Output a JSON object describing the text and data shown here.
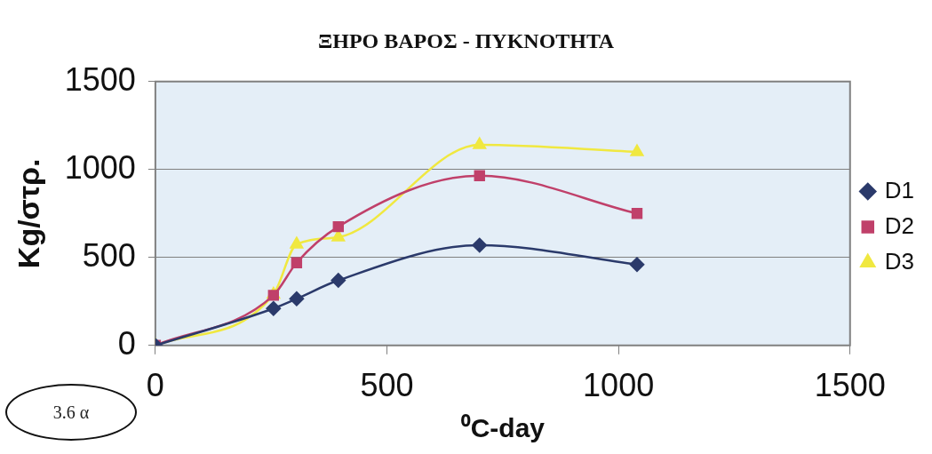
{
  "chart_data": {
    "type": "line",
    "title": "ΞΗΡΟ ΒΑΡΟΣ - ΠΥΚΝΟΤΗΤΑ",
    "xlabel": "⁰C-day",
    "ylabel": "Kg/στρ.",
    "xlim": [
      0,
      1500
    ],
    "xticks": [
      0,
      500,
      1000,
      1500
    ],
    "ylim": [
      0,
      1500
    ],
    "yticks": [
      0,
      500,
      1000,
      1500
    ],
    "grid": "y",
    "legend": "right",
    "annotations": [
      "3.6 α"
    ],
    "series": [
      {
        "name": "D1",
        "color": "#2b3a6b",
        "marker": "diamond",
        "x": [
          0,
          255,
          305,
          395,
          700,
          1040
        ],
        "values": [
          0,
          210,
          265,
          370,
          570,
          460
        ]
      },
      {
        "name": "D2",
        "color": "#c0406a",
        "marker": "square",
        "x": [
          0,
          255,
          305,
          395,
          700,
          1040
        ],
        "values": [
          0,
          285,
          470,
          675,
          965,
          750
        ]
      },
      {
        "name": "D3",
        "color": "#f0e840",
        "marker": "triangle",
        "x": [
          0,
          255,
          305,
          395,
          700,
          1040
        ],
        "values": [
          0,
          290,
          575,
          615,
          1140,
          1100
        ]
      }
    ]
  }
}
